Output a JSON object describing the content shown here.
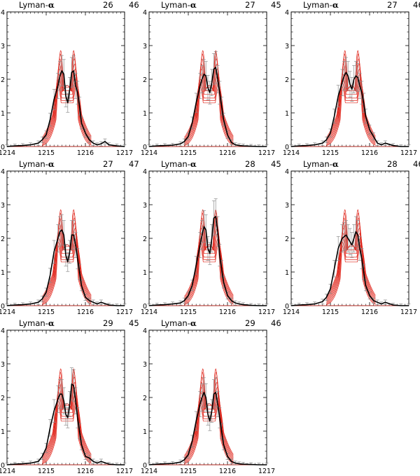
{
  "chart_data": {
    "type": "line",
    "layout": "3x3 grid, 8 panels",
    "x_range": [
      1214,
      1217
    ],
    "y_range": [
      0,
      4
    ],
    "x_ticks": [
      "1214",
      "1215",
      "1216",
      "1217"
    ],
    "y_ticks": [
      "0",
      "1",
      "2",
      "3",
      "4"
    ],
    "colors": {
      "model": "#e0281e",
      "observed": "#000000",
      "errorbars": "#8c8c8c"
    },
    "model_series": {
      "peaks_x": [
        1215.37,
        1215.7
      ],
      "peak_heights": [
        2.85,
        2.75,
        2.6,
        2.45,
        2.3,
        2.15,
        2.0,
        1.9,
        1.8
      ],
      "dip_height_center": 1.85
    },
    "panels": [
      {
        "line": "Lyman-",
        "greek": "α",
        "a": "26",
        "b": "46",
        "observed": {
          "x": [
            1214.0,
            1214.2,
            1214.4,
            1214.6,
            1214.8,
            1214.9,
            1215.0,
            1215.1,
            1215.2,
            1215.3,
            1215.35,
            1215.4,
            1215.45,
            1215.5,
            1215.55,
            1215.6,
            1215.65,
            1215.7,
            1215.75,
            1215.8,
            1215.85,
            1215.9,
            1216.0,
            1216.1,
            1216.2,
            1216.3,
            1216.4,
            1216.5,
            1216.6,
            1216.8,
            1217.0
          ],
          "y": [
            0.0,
            0.02,
            0.03,
            0.05,
            0.1,
            0.2,
            0.35,
            0.8,
            1.4,
            1.8,
            2.1,
            2.25,
            2.15,
            1.5,
            1.3,
            1.7,
            2.2,
            2.25,
            1.8,
            1.6,
            1.2,
            0.7,
            0.4,
            0.2,
            0.1,
            0.05,
            0.08,
            0.15,
            0.05,
            0.02,
            0.0
          ]
        }
      },
      {
        "line": "Lyman-",
        "greek": "α",
        "a": "27",
        "b": "45",
        "observed": {
          "x": [
            1214.0,
            1214.2,
            1214.4,
            1214.6,
            1214.8,
            1214.9,
            1215.0,
            1215.1,
            1215.2,
            1215.3,
            1215.35,
            1215.4,
            1215.45,
            1215.5,
            1215.55,
            1215.6,
            1215.65,
            1215.7,
            1215.75,
            1215.8,
            1215.85,
            1215.9,
            1216.0,
            1216.1,
            1216.2,
            1216.3,
            1216.4,
            1216.6,
            1216.8,
            1217.0
          ],
          "y": [
            0.0,
            0.02,
            0.03,
            0.04,
            0.08,
            0.15,
            0.3,
            0.7,
            1.3,
            1.8,
            2.0,
            2.15,
            2.1,
            1.75,
            1.6,
            1.9,
            2.3,
            2.35,
            2.0,
            1.6,
            1.2,
            0.8,
            0.35,
            0.12,
            0.05,
            0.03,
            0.02,
            0.01,
            0.0,
            0.0
          ]
        }
      },
      {
        "line": "Lyman-",
        "greek": "α",
        "a": "27",
        "b": "46",
        "observed": {
          "x": [
            1214.0,
            1214.2,
            1214.4,
            1214.6,
            1214.8,
            1214.9,
            1215.0,
            1215.1,
            1215.2,
            1215.3,
            1215.35,
            1215.4,
            1215.45,
            1215.5,
            1215.55,
            1215.6,
            1215.65,
            1215.7,
            1215.75,
            1215.8,
            1215.85,
            1215.9,
            1216.0,
            1216.1,
            1216.2,
            1216.3,
            1216.4,
            1216.6,
            1216.8,
            1217.0
          ],
          "y": [
            0.0,
            0.02,
            0.03,
            0.05,
            0.1,
            0.2,
            0.4,
            0.9,
            1.5,
            1.9,
            2.1,
            2.2,
            2.1,
            1.85,
            1.7,
            2.0,
            2.1,
            2.05,
            1.8,
            1.6,
            1.3,
            0.9,
            0.5,
            0.3,
            0.1,
            0.05,
            0.1,
            0.03,
            0.0,
            0.0
          ]
        }
      },
      {
        "line": "Lyman-",
        "greek": "α",
        "a": "27",
        "b": "47",
        "observed": {
          "x": [
            1214.0,
            1214.2,
            1214.4,
            1214.6,
            1214.8,
            1214.9,
            1215.0,
            1215.1,
            1215.2,
            1215.3,
            1215.35,
            1215.4,
            1215.45,
            1215.5,
            1215.55,
            1215.6,
            1215.65,
            1215.7,
            1215.75,
            1215.8,
            1215.85,
            1215.9,
            1216.0,
            1216.1,
            1216.2,
            1216.3,
            1216.4,
            1216.6,
            1216.8,
            1217.0
          ],
          "y": [
            0.0,
            0.02,
            0.03,
            0.05,
            0.1,
            0.2,
            0.4,
            0.9,
            1.6,
            2.0,
            2.2,
            2.25,
            2.1,
            1.5,
            1.3,
            1.6,
            2.1,
            2.1,
            1.8,
            1.4,
            1.0,
            0.6,
            0.25,
            0.15,
            0.1,
            0.05,
            0.1,
            0.02,
            0.0,
            0.0
          ]
        }
      },
      {
        "line": "Lyman-",
        "greek": "α",
        "a": "28",
        "b": "45",
        "observed": {
          "x": [
            1214.0,
            1214.2,
            1214.4,
            1214.6,
            1214.8,
            1214.9,
            1215.0,
            1215.1,
            1215.2,
            1215.3,
            1215.35,
            1215.4,
            1215.45,
            1215.5,
            1215.55,
            1215.6,
            1215.65,
            1215.7,
            1215.75,
            1215.8,
            1215.85,
            1215.9,
            1216.0,
            1216.1,
            1216.2,
            1216.3,
            1216.4,
            1216.6,
            1216.8,
            1217.0
          ],
          "y": [
            0.0,
            0.02,
            0.03,
            0.05,
            0.08,
            0.15,
            0.3,
            0.6,
            1.2,
            1.8,
            2.1,
            2.35,
            2.25,
            1.7,
            1.55,
            2.0,
            2.6,
            2.65,
            2.2,
            1.5,
            1.1,
            0.7,
            0.3,
            0.15,
            0.08,
            0.05,
            0.03,
            0.01,
            0.0,
            0.0
          ]
        }
      },
      {
        "line": "Lyman-",
        "greek": "α",
        "a": "28",
        "b": "46",
        "observed": {
          "x": [
            1214.0,
            1214.2,
            1214.4,
            1214.6,
            1214.8,
            1214.9,
            1215.0,
            1215.1,
            1215.2,
            1215.3,
            1215.35,
            1215.4,
            1215.45,
            1215.5,
            1215.55,
            1215.6,
            1215.65,
            1215.7,
            1215.75,
            1215.8,
            1215.85,
            1215.9,
            1216.0,
            1216.1,
            1216.2,
            1216.3,
            1216.4,
            1216.6,
            1216.8,
            1217.0
          ],
          "y": [
            0.0,
            0.02,
            0.03,
            0.05,
            0.12,
            0.25,
            0.5,
            1.1,
            1.7,
            2.0,
            2.05,
            2.1,
            2.0,
            1.9,
            1.8,
            2.0,
            2.2,
            2.1,
            1.7,
            1.4,
            1.0,
            0.6,
            0.3,
            0.15,
            0.1,
            0.05,
            0.1,
            0.02,
            0.0,
            0.0
          ]
        }
      },
      {
        "line": "Lyman-",
        "greek": "α",
        "a": "29",
        "b": "45",
        "observed": {
          "x": [
            1214.0,
            1214.2,
            1214.4,
            1214.6,
            1214.8,
            1214.9,
            1215.0,
            1215.1,
            1215.2,
            1215.3,
            1215.35,
            1215.4,
            1215.45,
            1215.5,
            1215.55,
            1215.6,
            1215.65,
            1215.7,
            1215.75,
            1215.8,
            1215.85,
            1215.9,
            1216.0,
            1216.1,
            1216.2,
            1216.3,
            1216.4,
            1216.6,
            1216.8,
            1217.0
          ],
          "y": [
            0.0,
            0.02,
            0.03,
            0.05,
            0.1,
            0.25,
            0.5,
            1.1,
            1.6,
            1.95,
            2.1,
            2.1,
            1.9,
            1.5,
            1.4,
            1.8,
            2.4,
            2.35,
            1.9,
            1.4,
            1.0,
            0.6,
            0.25,
            0.2,
            0.1,
            0.05,
            0.1,
            0.02,
            0.0,
            0.0
          ]
        }
      },
      {
        "line": "Lyman-",
        "greek": "α",
        "a": "29",
        "b": "46",
        "observed": {
          "x": [
            1214.0,
            1214.2,
            1214.4,
            1214.6,
            1214.8,
            1214.9,
            1215.0,
            1215.1,
            1215.2,
            1215.3,
            1215.35,
            1215.4,
            1215.45,
            1215.5,
            1215.55,
            1215.6,
            1215.65,
            1215.7,
            1215.75,
            1215.8,
            1215.85,
            1215.9,
            1216.0,
            1216.1,
            1216.2,
            1216.3,
            1216.4,
            1216.6,
            1216.8,
            1217.0
          ],
          "y": [
            0.0,
            0.02,
            0.03,
            0.04,
            0.08,
            0.15,
            0.3,
            0.7,
            1.3,
            1.8,
            2.0,
            2.15,
            2.0,
            1.5,
            1.3,
            1.6,
            2.1,
            2.15,
            1.8,
            1.4,
            1.0,
            0.6,
            0.25,
            0.1,
            0.05,
            0.03,
            0.02,
            0.01,
            0.0,
            0.0
          ]
        }
      }
    ]
  }
}
